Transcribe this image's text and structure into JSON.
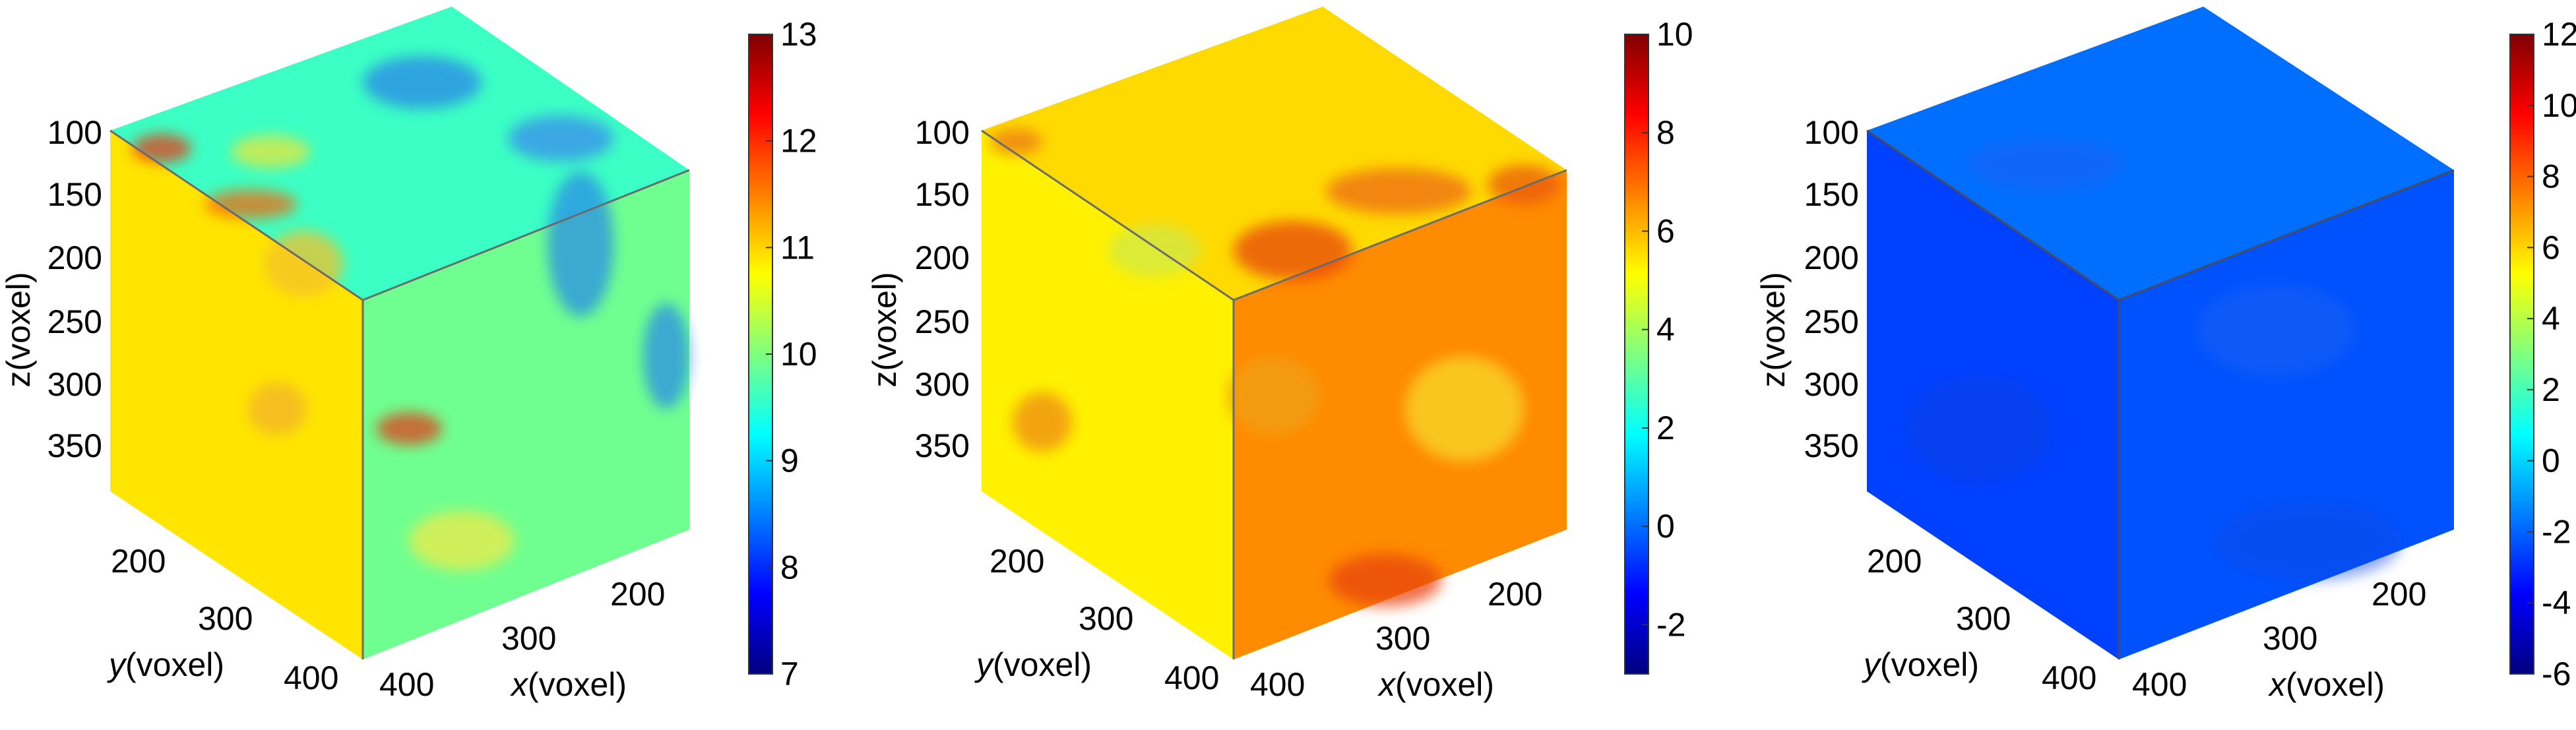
{
  "chart_data": [
    {
      "type": "heatmap",
      "colormap": "jet",
      "axes": {
        "x": {
          "label_var": "x",
          "label_unit": "(voxel)",
          "ticks": [
            "200",
            "300",
            "400"
          ]
        },
        "y": {
          "label_var": "y",
          "label_unit": "(voxel)",
          "ticks": [
            "200",
            "300",
            "400"
          ]
        },
        "z": {
          "label": "z(voxel)",
          "ticks": [
            "100",
            "150",
            "200",
            "250",
            "300",
            "350"
          ]
        }
      },
      "colorbar": {
        "min": 7,
        "max": 13,
        "ticks": [
          "7",
          "8",
          "9",
          "10",
          "11",
          "12",
          "13"
        ]
      },
      "face_mean_values": {
        "top": 9.6,
        "left": 10.9,
        "right": 9.9
      }
    },
    {
      "type": "heatmap",
      "colormap": "jet",
      "axes": {
        "x": {
          "label_var": "x",
          "label_unit": "(voxel)",
          "ticks": [
            "200",
            "300",
            "400"
          ]
        },
        "y": {
          "label_var": "y",
          "label_unit": "(voxel)",
          "ticks": [
            "200",
            "300",
            "400"
          ]
        },
        "z": {
          "label": "z(voxel)",
          "ticks": [
            "100",
            "150",
            "200",
            "250",
            "300",
            "350"
          ]
        }
      },
      "colorbar": {
        "min": -3,
        "max": 10,
        "ticks": [
          "-2",
          "0",
          "2",
          "4",
          "6",
          "8",
          "10"
        ]
      },
      "face_mean_values": {
        "top": 5.6,
        "left": 5.3,
        "right": 6.6
      }
    },
    {
      "type": "heatmap",
      "colormap": "jet",
      "axes": {
        "x": {
          "label_var": "x",
          "label_unit": "(voxel)",
          "ticks": [
            "200",
            "300",
            "400"
          ]
        },
        "y": {
          "label_var": "y",
          "label_unit": "(voxel)",
          "ticks": [
            "200",
            "300",
            "400"
          ]
        },
        "z": {
          "label": "z(voxel)",
          "ticks": [
            "100",
            "150",
            "200",
            "250",
            "300",
            "350"
          ]
        }
      },
      "colorbar": {
        "min": -6,
        "max": 12,
        "ticks": [
          "-6",
          "-4",
          "-2",
          "0",
          "2",
          "4",
          "6",
          "8",
          "10",
          "12"
        ]
      },
      "face_mean_values": {
        "top": -1.8,
        "left": -2.6,
        "right": -2.3
      }
    }
  ]
}
